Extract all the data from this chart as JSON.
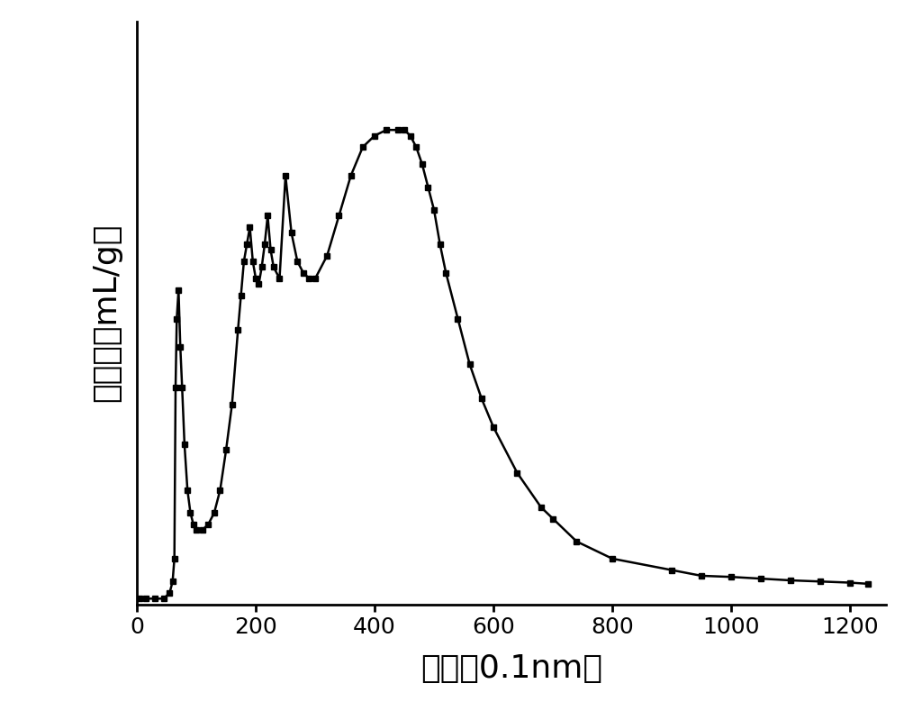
{
  "x": [
    5,
    15,
    30,
    45,
    55,
    60,
    63,
    65,
    67,
    70,
    73,
    76,
    80,
    85,
    90,
    95,
    100,
    110,
    120,
    130,
    140,
    150,
    160,
    170,
    175,
    180,
    185,
    190,
    195,
    200,
    205,
    210,
    215,
    220,
    225,
    230,
    240,
    250,
    260,
    270,
    280,
    290,
    300,
    320,
    340,
    360,
    380,
    400,
    420,
    440,
    450,
    460,
    470,
    480,
    490,
    500,
    510,
    520,
    540,
    560,
    580,
    600,
    640,
    680,
    700,
    740,
    800,
    900,
    950,
    1000,
    1050,
    1100,
    1150,
    1200,
    1230
  ],
  "y": [
    0.01,
    0.01,
    0.01,
    0.01,
    0.02,
    0.04,
    0.08,
    0.38,
    0.5,
    0.55,
    0.45,
    0.38,
    0.28,
    0.2,
    0.16,
    0.14,
    0.13,
    0.13,
    0.14,
    0.16,
    0.2,
    0.27,
    0.35,
    0.48,
    0.54,
    0.6,
    0.63,
    0.66,
    0.6,
    0.57,
    0.56,
    0.59,
    0.63,
    0.68,
    0.62,
    0.59,
    0.57,
    0.75,
    0.65,
    0.6,
    0.58,
    0.57,
    0.57,
    0.61,
    0.68,
    0.75,
    0.8,
    0.82,
    0.83,
    0.83,
    0.83,
    0.82,
    0.8,
    0.77,
    0.73,
    0.69,
    0.63,
    0.58,
    0.5,
    0.42,
    0.36,
    0.31,
    0.23,
    0.17,
    0.15,
    0.11,
    0.08,
    0.06,
    0.05,
    0.048,
    0.045,
    0.042,
    0.04,
    0.038,
    0.036
  ],
  "title": "",
  "xlabel": "孔径（0.1nm）",
  "ylabel": "孔体积（mL/g）",
  "xlim": [
    0,
    1260
  ],
  "ylim": [
    0,
    1.02
  ],
  "xticks": [
    0,
    200,
    400,
    600,
    800,
    1000,
    1200
  ],
  "line_color": "#000000",
  "marker": "s",
  "markersize": 5,
  "linewidth": 1.8,
  "background_color": "#ffffff",
  "xlabel_fontsize": 26,
  "ylabel_fontsize": 26,
  "tick_fontsize": 18,
  "spine_linewidth": 2.0
}
